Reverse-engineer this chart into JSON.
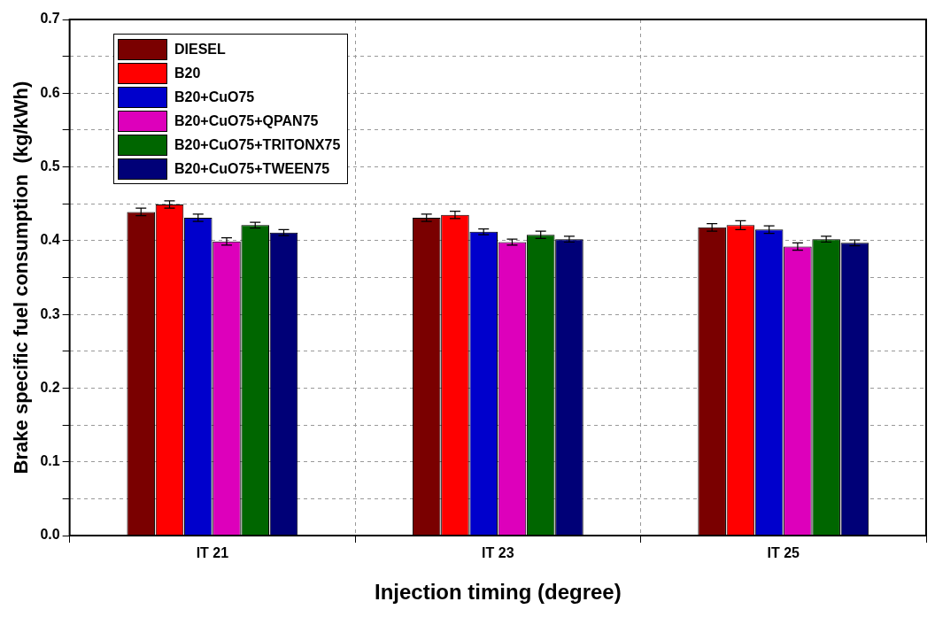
{
  "chart_data": {
    "type": "bar",
    "xlabel": "Injection timing (degree)",
    "ylabel": "Brake specific fuel consumption  (kg/kWh)",
    "categories": [
      "IT 21",
      "IT 23",
      "IT 25"
    ],
    "series": [
      {
        "name": "DIESEL",
        "color": "#7a0000",
        "values": [
          0.439,
          0.431,
          0.418
        ],
        "errors": [
          0.005,
          0.005,
          0.005
        ]
      },
      {
        "name": "B20",
        "color": "#ff0000",
        "values": [
          0.449,
          0.435,
          0.421
        ],
        "errors": [
          0.005,
          0.005,
          0.006
        ]
      },
      {
        "name": "B20+CuO75",
        "color": "#0000cc",
        "values": [
          0.431,
          0.412,
          0.415
        ],
        "errors": [
          0.005,
          0.004,
          0.005
        ]
      },
      {
        "name": "B20+CuO75+QPAN75",
        "color": "#dd00bb",
        "values": [
          0.399,
          0.398,
          0.392
        ],
        "errors": [
          0.005,
          0.004,
          0.005
        ]
      },
      {
        "name": "B20+CuO75+TRITONX75",
        "color": "#006600",
        "values": [
          0.421,
          0.408,
          0.402
        ],
        "errors": [
          0.004,
          0.005,
          0.004
        ]
      },
      {
        "name": "B20+CuO75+TWEEN75",
        "color": "#000077",
        "values": [
          0.411,
          0.402,
          0.397
        ],
        "errors": [
          0.004,
          0.004,
          0.004
        ]
      }
    ],
    "ylim": [
      0,
      0.7
    ],
    "yticks": [
      "0.0",
      {
        "value": 0.05,
        "label": null
      },
      0.1,
      {
        "value": 0.15,
        "label": null
      },
      0.2,
      {
        "value": 0.25,
        "label": null
      },
      0.3,
      {
        "value": 0.35,
        "label": null
      },
      0.4,
      {
        "value": 0.45,
        "label": null
      },
      0.5,
      {
        "value": 0.55,
        "label": null
      },
      0.6,
      {
        "value": 0.65,
        "label": null
      },
      0.7
    ],
    "grid": true,
    "legend": "top left"
  }
}
